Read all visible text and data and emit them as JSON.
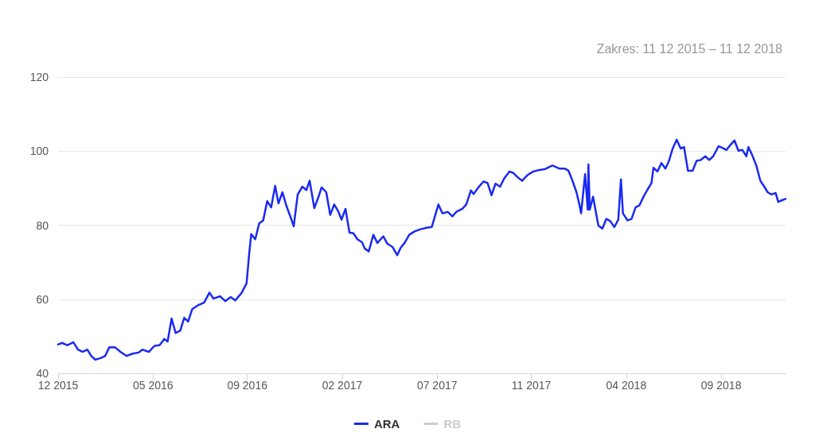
{
  "chart_data": {
    "type": "line",
    "subtitle": "Zakres: 11 12 2015 – 11 12 2018",
    "x": [
      "2015-12-11",
      "2015-12-17",
      "2015-12-25",
      "2016-01-03",
      "2016-01-10",
      "2016-01-17",
      "2016-01-24",
      "2016-01-30",
      "2016-02-05",
      "2016-02-13",
      "2016-02-20",
      "2016-02-26",
      "2016-03-06",
      "2016-03-14",
      "2016-03-23",
      "2016-04-01",
      "2016-04-10",
      "2016-04-16",
      "2016-04-26",
      "2016-05-04",
      "2016-05-12",
      "2016-05-19",
      "2016-05-24",
      "2016-05-30",
      "2016-06-05",
      "2016-06-12",
      "2016-06-18",
      "2016-06-24",
      "2016-06-30",
      "2016-07-08",
      "2016-07-18",
      "2016-07-26",
      "2016-08-01",
      "2016-08-11",
      "2016-08-19",
      "2016-08-27",
      "2016-09-03",
      "2016-09-12",
      "2016-09-20",
      "2016-09-24",
      "2016-09-27",
      "2016-10-03",
      "2016-10-09",
      "2016-10-15",
      "2016-10-21",
      "2016-10-27",
      "2016-11-02",
      "2016-11-07",
      "2016-11-13",
      "2016-11-19",
      "2016-11-24",
      "2016-11-30",
      "2016-12-06",
      "2016-12-13",
      "2016-12-19",
      "2016-12-24",
      "2016-12-31",
      "2017-01-06",
      "2017-01-11",
      "2017-01-18",
      "2017-01-24",
      "2017-01-30",
      "2017-02-05",
      "2017-02-10",
      "2017-02-16",
      "2017-02-22",
      "2017-02-28",
      "2017-03-06",
      "2017-03-13",
      "2017-03-17",
      "2017-03-23",
      "2017-03-30",
      "2017-04-05",
      "2017-04-14",
      "2017-04-20",
      "2017-04-28",
      "2017-05-05",
      "2017-05-10",
      "2017-05-16",
      "2017-05-23",
      "2017-05-31",
      "2017-06-09",
      "2017-06-18",
      "2017-06-26",
      "2017-07-02",
      "2017-07-06",
      "2017-07-12",
      "2017-07-20",
      "2017-07-27",
      "2017-08-02",
      "2017-08-11",
      "2017-08-17",
      "2017-08-24",
      "2017-08-28",
      "2017-09-06",
      "2017-09-12",
      "2017-09-18",
      "2017-09-24",
      "2017-09-30",
      "2017-10-07",
      "2017-10-13",
      "2017-10-21",
      "2017-10-27",
      "2017-11-02",
      "2017-11-09",
      "2017-11-17",
      "2017-11-26",
      "2017-12-05",
      "2017-12-13",
      "2017-12-22",
      "2017-12-25",
      "2018-01-04",
      "2018-01-12",
      "2018-01-18",
      "2018-01-24",
      "2018-01-30",
      "2018-02-03",
      "2018-02-06",
      "2018-02-12",
      "2018-02-16",
      "2018-02-17",
      "2018-02-19",
      "2018-02-24",
      "2018-03-01",
      "2018-03-04",
      "2018-03-10",
      "2018-03-16",
      "2018-03-22",
      "2018-03-28",
      "2018-04-03",
      "2018-04-07",
      "2018-04-10",
      "2018-04-17",
      "2018-04-23",
      "2018-04-29",
      "2018-05-05",
      "2018-05-11",
      "2018-05-17",
      "2018-05-23",
      "2018-05-26",
      "2018-06-01",
      "2018-06-07",
      "2018-06-13",
      "2018-06-18",
      "2018-06-24",
      "2018-06-30",
      "2018-07-06",
      "2018-07-11",
      "2018-07-17",
      "2018-07-24",
      "2018-07-30",
      "2018-08-05",
      "2018-08-12",
      "2018-08-18",
      "2018-08-24",
      "2018-09-01",
      "2018-09-07",
      "2018-09-13",
      "2018-09-19",
      "2018-09-25",
      "2018-10-01",
      "2018-10-07",
      "2018-10-13",
      "2018-10-16",
      "2018-10-22",
      "2018-10-28",
      "2018-11-03",
      "2018-11-09",
      "2018-11-14",
      "2018-11-20",
      "2018-11-26",
      "2018-11-30",
      "2018-12-05",
      "2018-12-11"
    ],
    "series": [
      {
        "name": "ARA",
        "color": "#1a2af0",
        "values": [
          47.8,
          48.2,
          47.6,
          48.4,
          46.4,
          45.8,
          46.4,
          44.7,
          43.7,
          44.1,
          44.7,
          47,
          47,
          45.8,
          44.7,
          45.3,
          45.6,
          46.4,
          45.8,
          47.4,
          47.6,
          49.3,
          48.6,
          54.8,
          50.9,
          51.5,
          55,
          54,
          57.3,
          58.3,
          59.1,
          61.8,
          60.2,
          60.8,
          59.5,
          60.6,
          59.7,
          61.6,
          64.3,
          72.5,
          77.6,
          76.2,
          80.5,
          81.3,
          86.5,
          84.8,
          90.6,
          85.9,
          88.9,
          85.2,
          82.8,
          79.7,
          88.3,
          90.4,
          89.5,
          92,
          84.6,
          87.5,
          90.2,
          88.9,
          82.8,
          85.6,
          83.8,
          81.5,
          84.4,
          78,
          77.8,
          76.2,
          75.4,
          73.7,
          72.9,
          77.4,
          75.2,
          77,
          75,
          74.1,
          71.9,
          73.9,
          75.2,
          77.4,
          78.3,
          78.9,
          79.3,
          79.5,
          83.2,
          85.6,
          83.2,
          83.6,
          82.4,
          83.6,
          84.4,
          85.6,
          89.4,
          88.4,
          90.6,
          91.8,
          91.4,
          88.1,
          91.2,
          90.4,
          92.6,
          94.5,
          94.1,
          93,
          92,
          93.5,
          94.5,
          94.9,
          95.1,
          95.9,
          96.1,
          95.3,
          95.3,
          94.7,
          92,
          88.9,
          85.9,
          83.2,
          93.8,
          84.2,
          96.4,
          84.2,
          87.7,
          82.8,
          79.9,
          79.1,
          81.7,
          81.1,
          79.5,
          81.5,
          92.4,
          83.2,
          81.3,
          81.7,
          84.8,
          85.4,
          87.7,
          89.6,
          91.4,
          95.5,
          94.5,
          96.8,
          95.3,
          97.2,
          100.7,
          103.1,
          100.7,
          101.1,
          94.7,
          94.7,
          97.4,
          97.6,
          98.6,
          97.6,
          98.6,
          101.3,
          100.9,
          100.3,
          101.7,
          102.9,
          100.1,
          100.3,
          98.6,
          101.1,
          98.8,
          96.1,
          92,
          90.4,
          88.9,
          88.3,
          88.7,
          86.3,
          86.7,
          87.1
        ]
      },
      {
        "name": "RB",
        "color": "#cccccc",
        "values": [
          null,
          null,
          null,
          null,
          null,
          null,
          null,
          null,
          null,
          null,
          null,
          null,
          null,
          null,
          null,
          null,
          null,
          null,
          null,
          null,
          null,
          null,
          null,
          null,
          null,
          null,
          null,
          null,
          null,
          null,
          null,
          null,
          null,
          null,
          null,
          null,
          null,
          null,
          null,
          null,
          null,
          null,
          null,
          null,
          null,
          null,
          null,
          null,
          null,
          null,
          null,
          null,
          null,
          null,
          null,
          null,
          null,
          null,
          null,
          null,
          null,
          null,
          null,
          null,
          null,
          null,
          null,
          null,
          null,
          null,
          null,
          null,
          null,
          null,
          null,
          null,
          null,
          null,
          null,
          null,
          null,
          null,
          null,
          null,
          null,
          null,
          null,
          null,
          null,
          null,
          null,
          null,
          null,
          null,
          null,
          null,
          null,
          null,
          null,
          null,
          null,
          null,
          null,
          null,
          null,
          null,
          null,
          null,
          null,
          null,
          null,
          null,
          null,
          null,
          null,
          null,
          null,
          null,
          null,
          null,
          null,
          null,
          null,
          null,
          null,
          null,
          null,
          null,
          null,
          null,
          null,
          null,
          null,
          null,
          null,
          null,
          null,
          null,
          null,
          null,
          null,
          null,
          null,
          null,
          null,
          null,
          null,
          null,
          null,
          null,
          null,
          null,
          null,
          null,
          null,
          null,
          null,
          null,
          null,
          null,
          null,
          null,
          null,
          null,
          null,
          null,
          null,
          null,
          null,
          null,
          null,
          null,
          null,
          null
        ]
      }
    ],
    "xlim": [
      "2015-12-11",
      "2018-12-11"
    ],
    "xticks": [
      {
        "value": "2015-12-11",
        "label": "12 2015"
      },
      {
        "value": "2016-05-02",
        "label": "05 2016"
      },
      {
        "value": "2016-09-21",
        "label": "09 2016"
      },
      {
        "value": "2017-02-11",
        "label": "02 2017"
      },
      {
        "value": "2017-07-04",
        "label": "07 2017"
      },
      {
        "value": "2017-11-23",
        "label": "11 2017"
      },
      {
        "value": "2018-04-15",
        "label": "04 2018"
      },
      {
        "value": "2018-09-05",
        "label": "09 2018"
      }
    ],
    "ylim": [
      40,
      120
    ],
    "yticks": [
      40,
      60,
      80,
      100,
      120
    ],
    "grid": "y",
    "legend": "bottom",
    "marker": "none",
    "line_style": "solid"
  }
}
